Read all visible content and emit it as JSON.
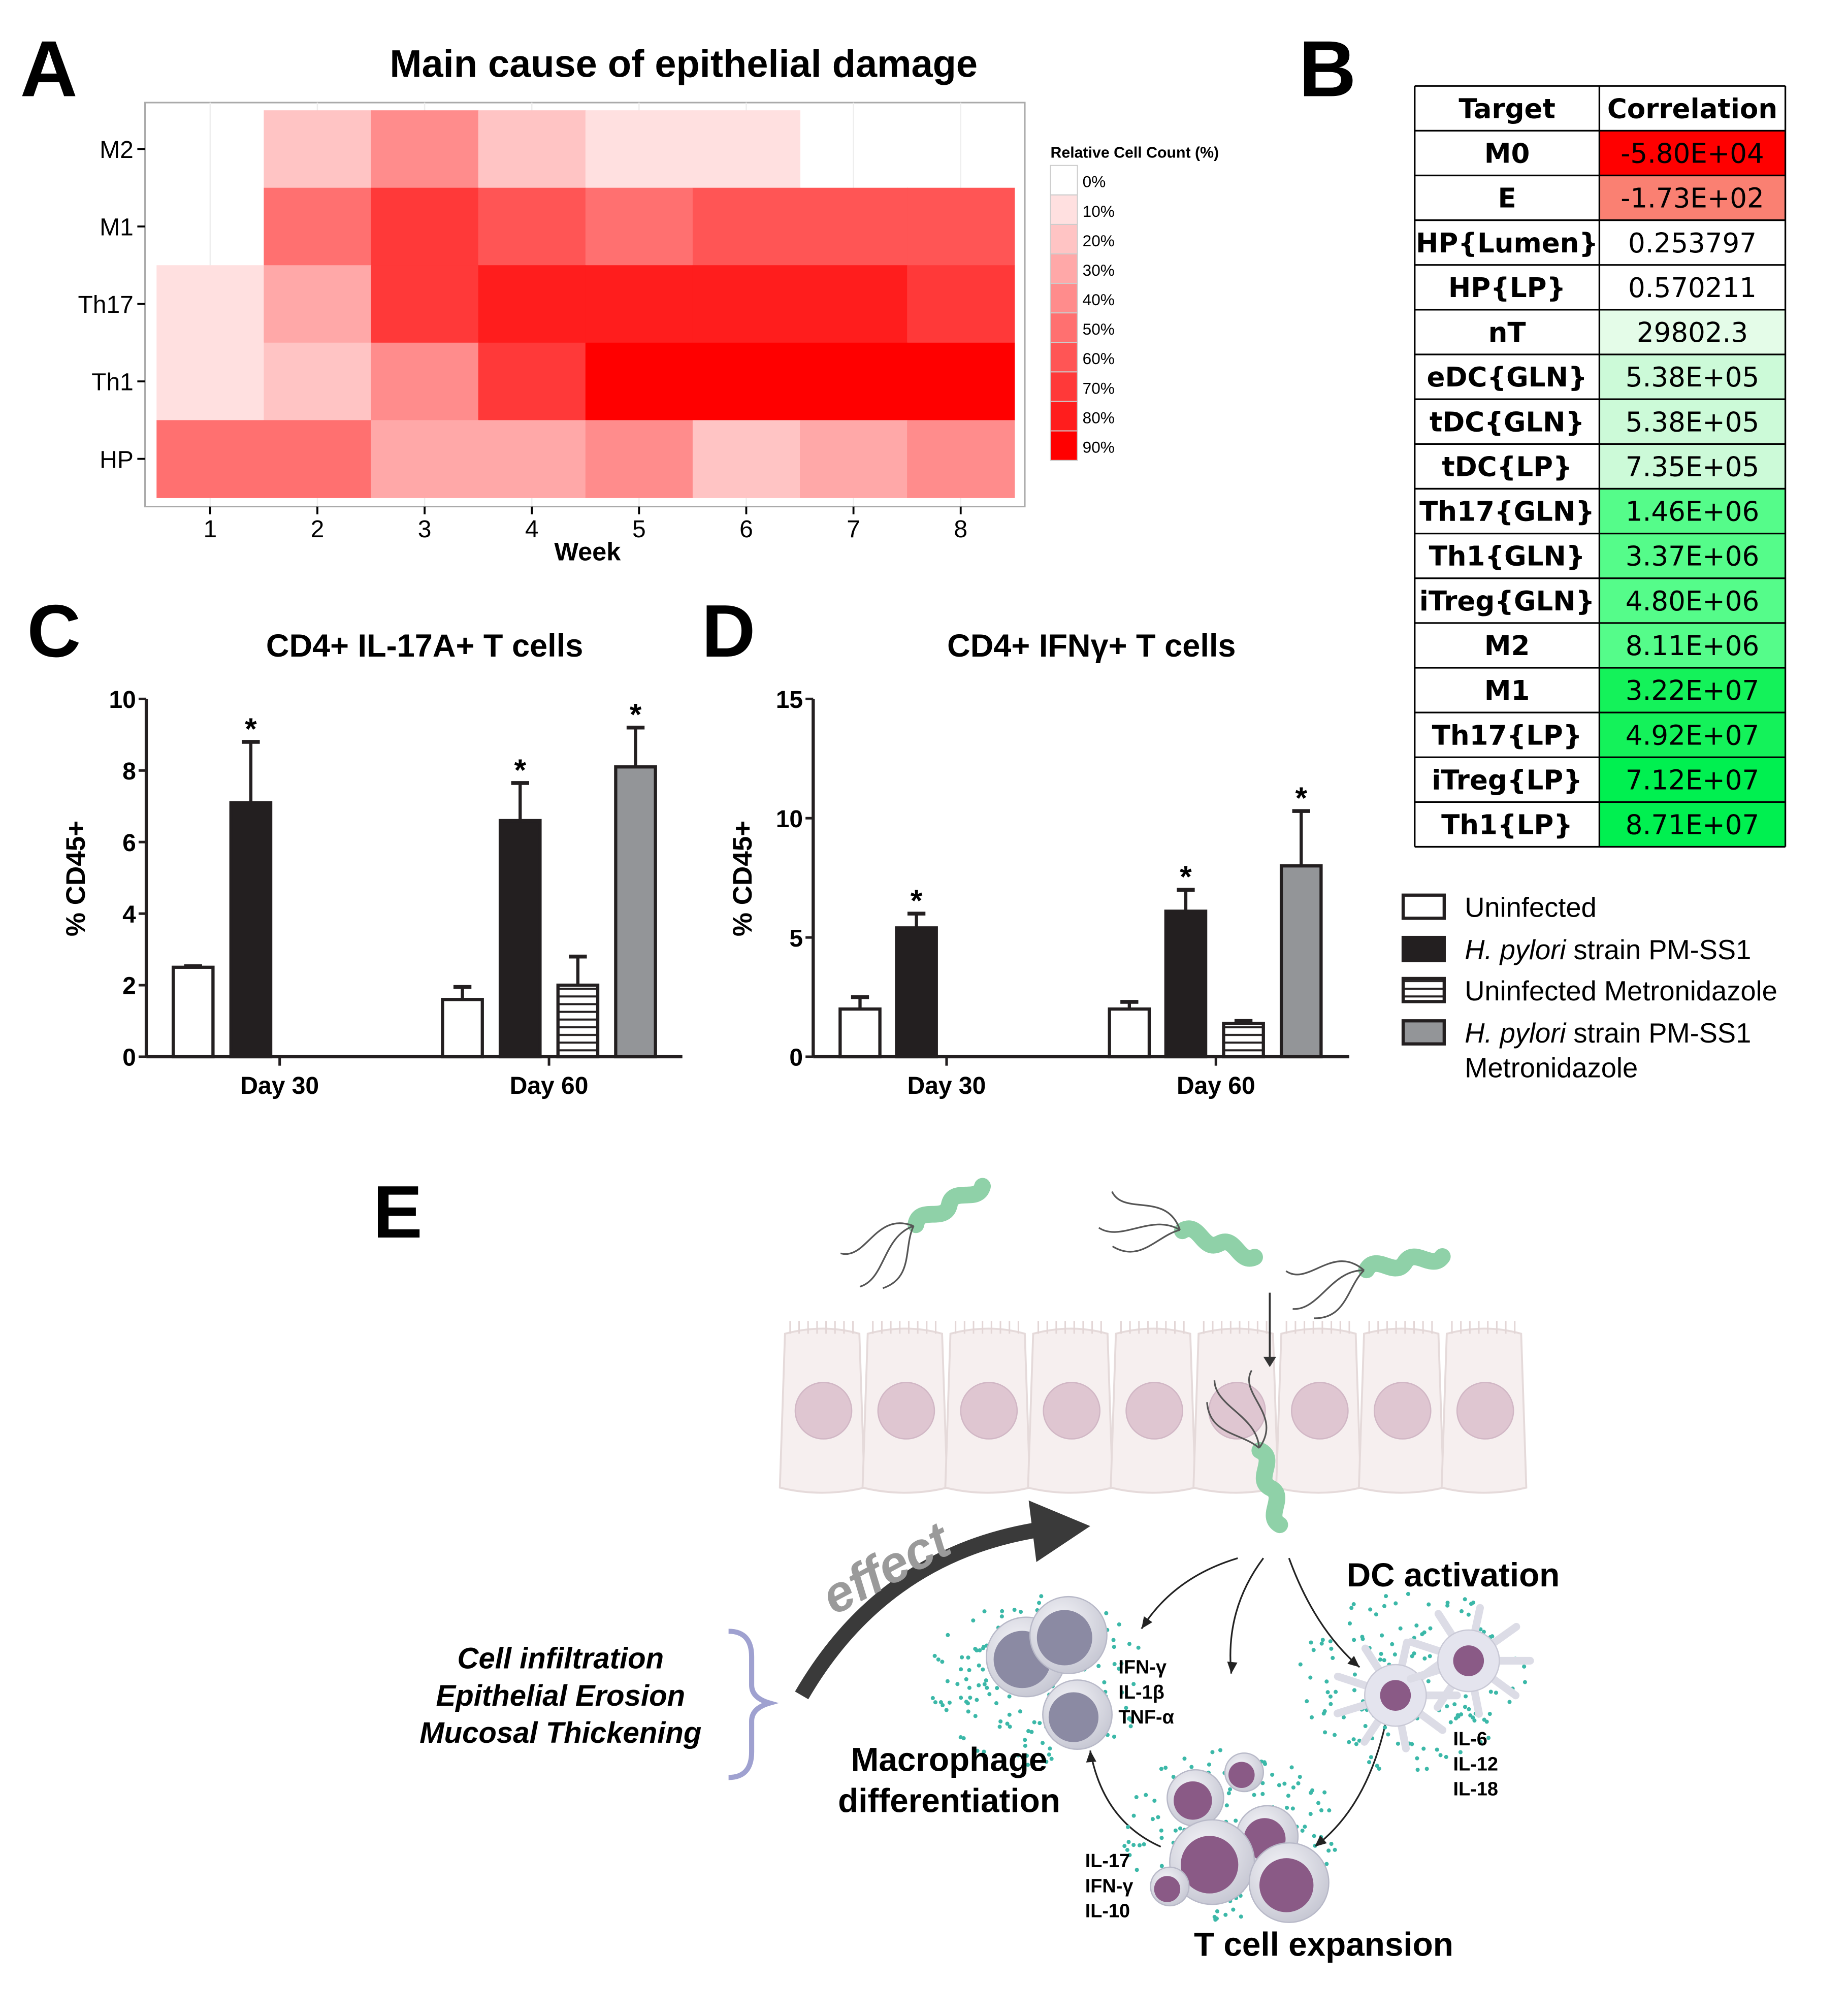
{
  "panels": {
    "a": "A",
    "b": "B",
    "c": "C",
    "d": "D",
    "e": "E"
  },
  "chart_data": [
    {
      "type": "heatmap",
      "title": "Main cause of epithelial damage",
      "xlabel": "Week",
      "ylabel": "",
      "x": [
        "1",
        "2",
        "3",
        "4",
        "5",
        "6",
        "7",
        "8"
      ],
      "y": [
        "M2",
        "M1",
        "Th17",
        "Th1",
        "HP"
      ],
      "values": [
        [
          0,
          20,
          40,
          20,
          10,
          10,
          0,
          0
        ],
        [
          0,
          50,
          70,
          60,
          50,
          60,
          60,
          60
        ],
        [
          10,
          30,
          70,
          80,
          80,
          80,
          80,
          70
        ],
        [
          10,
          20,
          40,
          70,
          90,
          90,
          90,
          90
        ],
        [
          50,
          50,
          30,
          30,
          40,
          20,
          30,
          40
        ]
      ],
      "legend": {
        "title": "Relative Cell Count (%)",
        "placement": "right",
        "levels": [
          "0%",
          "10%",
          "20%",
          "30%",
          "40%",
          "50%",
          "60%",
          "70%",
          "80%",
          "90%"
        ],
        "colors": [
          "#ffffff",
          "#ffe0e0",
          "#ffc4c4",
          "#ffa8a8",
          "#ff8c8c",
          "#ff7070",
          "#ff5555",
          "#ff3939",
          "#ff1d1d",
          "#ff0000"
        ]
      }
    },
    {
      "type": "table",
      "columns": [
        "Target",
        "Correlation"
      ],
      "rows": [
        {
          "target": "M0",
          "value": "-5.80E+04",
          "color": "#ff0000"
        },
        {
          "target": "E",
          "value": "-1.73E+02",
          "color": "#fa8072"
        },
        {
          "target": "HP{Lumen}",
          "value": "0.253797",
          "color": "#ffffff"
        },
        {
          "target": "HP{LP}",
          "value": "0.570211",
          "color": "#ffffff"
        },
        {
          "target": "nT",
          "value": "29802.3",
          "color": "#e4fce8"
        },
        {
          "target": "eDC{GLN}",
          "value": "5.38E+05",
          "color": "#ccfad8"
        },
        {
          "target": "tDC{GLN}",
          "value": "5.38E+05",
          "color": "#ccfad8"
        },
        {
          "target": "tDC{LP}",
          "value": "7.35E+05",
          "color": "#ccfad8"
        },
        {
          "target": "Th17{GLN}",
          "value": "1.46E+06",
          "color": "#55fc8a"
        },
        {
          "target": "Th1{GLN}",
          "value": "3.37E+06",
          "color": "#55fc8a"
        },
        {
          "target": "iTreg{GLN}",
          "value": "4.80E+06",
          "color": "#55fc8a"
        },
        {
          "target": "M2",
          "value": "8.11E+06",
          "color": "#55fc8a"
        },
        {
          "target": "M1",
          "value": "3.22E+07",
          "color": "#14f25a"
        },
        {
          "target": "Th17{LP}",
          "value": "4.92E+07",
          "color": "#14f25a"
        },
        {
          "target": "iTreg{LP}",
          "value": "7.12E+07",
          "color": "#00f050"
        },
        {
          "target": "Th1{LP}",
          "value": "8.71E+07",
          "color": "#00f050"
        }
      ]
    },
    {
      "type": "bar",
      "title": "CD4+ IL-17A+ T cells",
      "ylabel": "% CD45+",
      "ylim": [
        0,
        10
      ],
      "yticks": [
        "0",
        "2",
        "4",
        "6",
        "8",
        "10"
      ],
      "categories": [
        "Day 30",
        "Day 60"
      ],
      "series": [
        {
          "name": "Uninfected",
          "values": [
            2.5,
            1.6
          ],
          "errors": [
            0.03,
            0.35
          ],
          "sig": [
            false,
            false
          ]
        },
        {
          "name": "H. pylori strain PM-SS1",
          "values": [
            7.1,
            6.6
          ],
          "errors": [
            1.7,
            1.05
          ],
          "sig": [
            true,
            true
          ]
        },
        {
          "name": "Uninfected Metronidazole",
          "values": [
            null,
            2.0
          ],
          "errors": [
            null,
            0.8
          ],
          "sig": [
            false,
            false
          ]
        },
        {
          "name": "H. pylori strain PM-SS1 Metronidazole",
          "values": [
            null,
            8.1
          ],
          "errors": [
            null,
            1.1
          ],
          "sig": [
            false,
            true
          ]
        }
      ],
      "annotation": "*"
    },
    {
      "type": "bar",
      "title": "CD4+ IFNγ+ T cells",
      "ylabel": "% CD45+",
      "ylim": [
        0,
        15
      ],
      "yticks": [
        "0",
        "5",
        "10",
        "15"
      ],
      "categories": [
        "Day 30",
        "Day 60"
      ],
      "series": [
        {
          "name": "Uninfected",
          "values": [
            2.0,
            2.0
          ],
          "errors": [
            0.5,
            0.3
          ],
          "sig": [
            false,
            false
          ]
        },
        {
          "name": "H. pylori strain PM-SS1",
          "values": [
            5.4,
            6.1
          ],
          "errors": [
            0.6,
            0.9
          ],
          "sig": [
            true,
            true
          ]
        },
        {
          "name": "Uninfected Metronidazole",
          "values": [
            null,
            1.4
          ],
          "errors": [
            null,
            0.1
          ],
          "sig": [
            false,
            false
          ]
        },
        {
          "name": "H. pylori strain PM-SS1 Metronidazole",
          "values": [
            null,
            8.0
          ],
          "errors": [
            null,
            2.3
          ],
          "sig": [
            false,
            true
          ]
        }
      ],
      "annotation": "*"
    }
  ],
  "bar_legend": [
    {
      "italic": "",
      "text": "Uninfected",
      "text2": "",
      "fill": "white"
    },
    {
      "italic": "H. pylori",
      "text": " strain PM-SS1",
      "text2": "",
      "fill": "black"
    },
    {
      "italic": "",
      "text": "Uninfected Metronidazole",
      "text2": "",
      "fill": "hatch"
    },
    {
      "italic": "H. pylori",
      "text": " strain PM-SS1",
      "text2": "Metronidazole",
      "fill": "gray"
    }
  ],
  "colors": {
    "black_bar": "#231f20",
    "gray_bar": "#939598",
    "brace": "#9fa1d0",
    "cytokine_dot": "#3bb8a8",
    "bacteria": "#8fd1a8"
  },
  "diagram": {
    "effect": "effect",
    "outcomes": [
      "Cell infiltration",
      "Epithelial Erosion",
      "Mucosal Thickening"
    ],
    "dc_label": "DC activation",
    "mac_label": [
      "Macrophage",
      "differentiation"
    ],
    "t_label": "T cell expansion",
    "mac_cytokines": [
      "IFN-γ",
      "IL-1β",
      "TNF-α"
    ],
    "dc_cytokines": [
      "IL-6",
      "IL-12",
      "IL-18"
    ],
    "t_cytokines": [
      "IL-17",
      "IFN-γ",
      "IL-10"
    ]
  }
}
